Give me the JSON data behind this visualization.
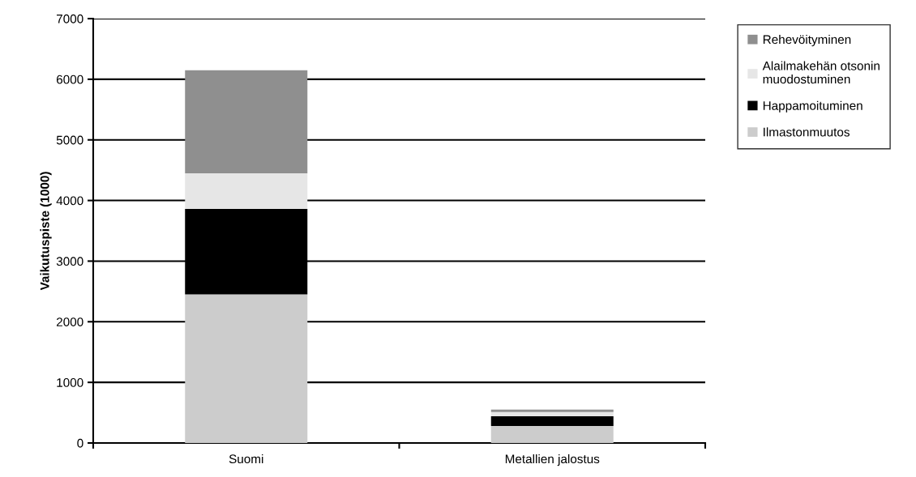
{
  "chart_data": {
    "type": "bar",
    "stacked": true,
    "ylabel": "Vaikutuspiste (1000)",
    "categories": [
      "Suomi",
      "Metallien jalostus"
    ],
    "series": [
      {
        "name": "Ilmastonmuutos",
        "color": "#cccccc",
        "values": [
          2450,
          280
        ]
      },
      {
        "name": "Happamoituminen",
        "color": "#000000",
        "values": [
          1410,
          160
        ]
      },
      {
        "name": "Alailmakehän otsonin\nmuodostuminen",
        "color": "#e6e6e6",
        "values": [
          590,
          70
        ]
      },
      {
        "name": "Rehevöityminen",
        "color": "#8f8f8f",
        "values": [
          1700,
          40
        ]
      }
    ],
    "ylim": [
      0,
      7000
    ],
    "yticks": [
      0,
      1000,
      2000,
      3000,
      4000,
      5000,
      6000,
      7000
    ],
    "grid": "y",
    "legend": "top right"
  }
}
